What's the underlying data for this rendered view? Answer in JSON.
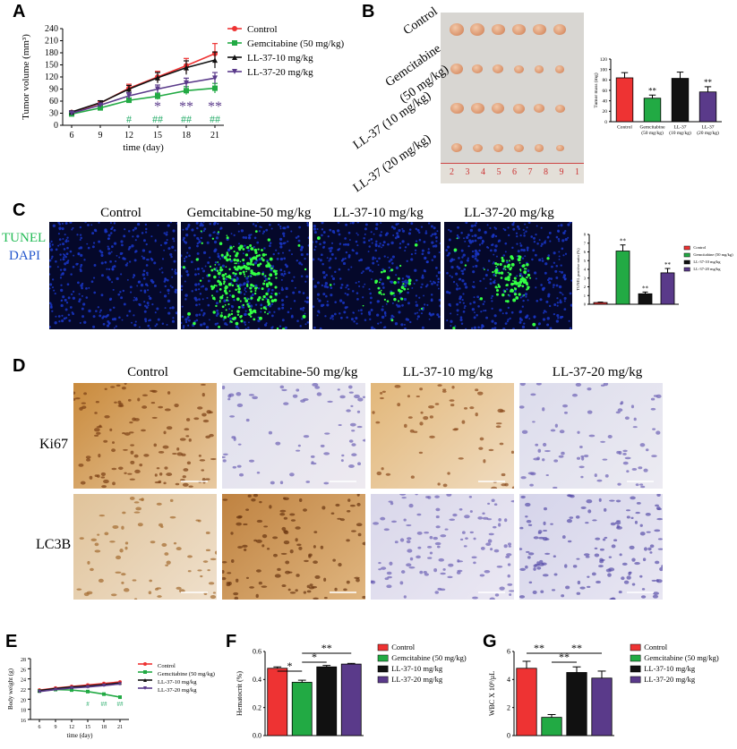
{
  "panels": {
    "A": "A",
    "B": "B",
    "C": "C",
    "D": "D",
    "E": "E",
    "F": "F",
    "G": "G"
  },
  "colors": {
    "control": "#ee3333",
    "gem": "#22aa44",
    "ll10": "#111111",
    "ll20": "#5a3a8a",
    "sig_green": "#22aa66",
    "sig_purple": "#5a3a8a"
  },
  "panelA": {
    "chart_data": {
      "type": "line",
      "xlabel": "time (day)",
      "ylabel": "Tumor volume (mm³)",
      "x": [
        6,
        9,
        12,
        15,
        18,
        21
      ],
      "xticks": [
        "6",
        "9",
        "12",
        "15",
        "18",
        "21"
      ],
      "yticks": [
        "0",
        "30",
        "60",
        "90",
        "120",
        "150",
        "180",
        "210",
        "240"
      ],
      "ylim": [
        0,
        240
      ],
      "series": [
        {
          "name": "Control",
          "values": [
            32,
            55,
            92,
            120,
            148,
            178
          ],
          "err": [
            3,
            5,
            10,
            14,
            18,
            25
          ]
        },
        {
          "name": "Gemcitabine (50 mg/kg)",
          "values": [
            28,
            43,
            62,
            72,
            86,
            92
          ],
          "err": [
            3,
            4,
            6,
            8,
            10,
            12
          ]
        },
        {
          "name": "LL-37-10 mg/kg",
          "values": [
            33,
            56,
            90,
            118,
            143,
            162
          ],
          "err": [
            3,
            5,
            9,
            13,
            17,
            20
          ]
        },
        {
          "name": "LL-37-20 mg/kg",
          "values": [
            30,
            50,
            73,
            90,
            105,
            117
          ],
          "err": [
            3,
            5,
            8,
            10,
            12,
            14
          ]
        }
      ],
      "legend_placement": "top-right",
      "sig_purple": [
        {
          "x": 15,
          "t": "*"
        },
        {
          "x": 18,
          "t": "**"
        },
        {
          "x": 21,
          "t": "**"
        }
      ],
      "sig_green": [
        {
          "x": 12,
          "t": "#"
        },
        {
          "x": 15,
          "t": "##"
        },
        {
          "x": 18,
          "t": "##"
        },
        {
          "x": 21,
          "t": "##"
        }
      ]
    }
  },
  "panelB": {
    "rows": [
      "Control",
      "Gemcitabine",
      "(50 mg/kg)",
      "LL-37 (10 mg/kg)",
      "LL-37 (20 mg/kg)"
    ],
    "ruler": [
      "2",
      "3",
      "4",
      "5",
      "6",
      "7",
      "8",
      "9",
      "1"
    ],
    "chart_data": {
      "type": "bar",
      "categories": [
        "Control",
        "Gemcitabine\n(50 mg/kg)",
        "LL-37\n(10 mg/kg)",
        "LL-37\n(20 mg/kg)"
      ],
      "values": [
        84,
        45,
        83,
        57
      ],
      "err": [
        10,
        6,
        12,
        10
      ],
      "sig": [
        "",
        "**",
        "",
        "**"
      ],
      "ylabel": "Tumor mass (mg)",
      "yticks": [
        "0",
        "20",
        "40",
        "60",
        "80",
        "100",
        "120"
      ],
      "ylim": [
        0,
        120
      ]
    }
  },
  "panelC": {
    "rowlabel1": "TUNEL",
    "rowlabel2": "DAPI",
    "cols": [
      "Control",
      "Gemcitabine-50 mg/kg",
      "LL-37-10 mg/kg",
      "LL-37-20 mg/kg"
    ],
    "chart_data": {
      "type": "bar",
      "categories": [
        "Control",
        "Gemcitabine (50 mg/kg)",
        "LL-37-10 mg/kg",
        "LL-37-20 mg/kg"
      ],
      "values": [
        0.2,
        6.1,
        1.2,
        3.6
      ],
      "err": [
        0.05,
        0.7,
        0.2,
        0.5
      ],
      "sig": [
        "",
        "**",
        "**",
        "**"
      ],
      "ylabel": "TUNEL positive ratio (%)",
      "yticks": [
        "0",
        "1",
        "2",
        "3",
        "4",
        "5",
        "6",
        "7",
        "8"
      ],
      "ylim": [
        0,
        8
      ],
      "legend": [
        "Control",
        "Gemcitabine (50 mg/kg)",
        "LL-37-10 mg/kg",
        "LL-37-20 mg/kg"
      ]
    }
  },
  "panelD": {
    "cols": [
      "Control",
      "Gemcitabine-50 mg/kg",
      "LL-37-10 mg/kg",
      "LL-37-20 mg/kg"
    ],
    "rows": [
      "Ki67",
      "LC3B"
    ]
  },
  "panelE": {
    "chart_data": {
      "type": "line",
      "xlabel": "time (day)",
      "ylabel": "Body weight (g)",
      "x": [
        6,
        9,
        12,
        15,
        18,
        21
      ],
      "xticks": [
        "6",
        "9",
        "12",
        "15",
        "18",
        "21"
      ],
      "yticks": [
        "16",
        "18",
        "20",
        "22",
        "24",
        "26",
        "28"
      ],
      "ylim": [
        16,
        28
      ],
      "series": [
        {
          "name": "Control",
          "values": [
            21.8,
            22.2,
            22.5,
            22.8,
            23.1,
            23.4
          ]
        },
        {
          "name": "Gemcitabine (50 mg/kg)",
          "values": [
            21.6,
            21.9,
            21.8,
            21.5,
            21.0,
            20.4
          ]
        },
        {
          "name": "LL-37-10 mg/kg",
          "values": [
            21.7,
            22.1,
            22.4,
            22.6,
            22.9,
            23.2
          ]
        },
        {
          "name": "LL-37-20 mg/kg",
          "values": [
            21.5,
            21.9,
            22.2,
            22.4,
            22.7,
            23.0
          ]
        }
      ],
      "sig_green": [
        {
          "x": 15,
          "t": "#"
        },
        {
          "x": 18,
          "t": "##"
        },
        {
          "x": 21,
          "t": "##"
        }
      ]
    }
  },
  "panelF": {
    "chart_data": {
      "type": "bar",
      "categories": [
        "Control",
        "Gemcitabine (50 mg/kg)",
        "LL-37-10 mg/kg",
        "LL-37-20 mg/kg"
      ],
      "values": [
        0.48,
        0.38,
        0.49,
        0.51
      ],
      "err": [
        0.01,
        0.015,
        0.01,
        0.005
      ],
      "ylabel": "Hematocrit (%)",
      "yticks": [
        "0.0",
        "0.2",
        "0.4",
        "0.6"
      ],
      "ylim": [
        0,
        0.6
      ],
      "brackets": [
        {
          "a": 0,
          "b": 1,
          "t": "*",
          "lvl": 0
        },
        {
          "a": 1,
          "b": 2,
          "t": "*",
          "lvl": 1
        },
        {
          "a": 1,
          "b": 3,
          "t": "**",
          "lvl": 2
        }
      ]
    }
  },
  "panelG": {
    "chart_data": {
      "type": "bar",
      "categories": [
        "Control",
        "Gemcitabine (50 mg/kg)",
        "LL-37-10 mg/kg",
        "LL-37-20 mg/kg"
      ],
      "values": [
        4.8,
        1.3,
        4.5,
        4.1
      ],
      "err": [
        0.5,
        0.2,
        0.4,
        0.5
      ],
      "ylabel": "WBC X 10⁹/μL",
      "yticks": [
        "0",
        "2",
        "4",
        "6"
      ],
      "ylim": [
        0,
        6
      ],
      "brackets": [
        {
          "a": 0,
          "b": 1,
          "t": "**",
          "lvl": 2
        },
        {
          "a": 1,
          "b": 2,
          "t": "**",
          "lvl": 1
        },
        {
          "a": 1,
          "b": 3,
          "t": "**",
          "lvl": 2
        }
      ]
    }
  },
  "legend_full": [
    "Control",
    "Gemcitabine (50 mg/kg)",
    "LL-37-10 mg/kg",
    "LL-37-20 mg/kg"
  ]
}
